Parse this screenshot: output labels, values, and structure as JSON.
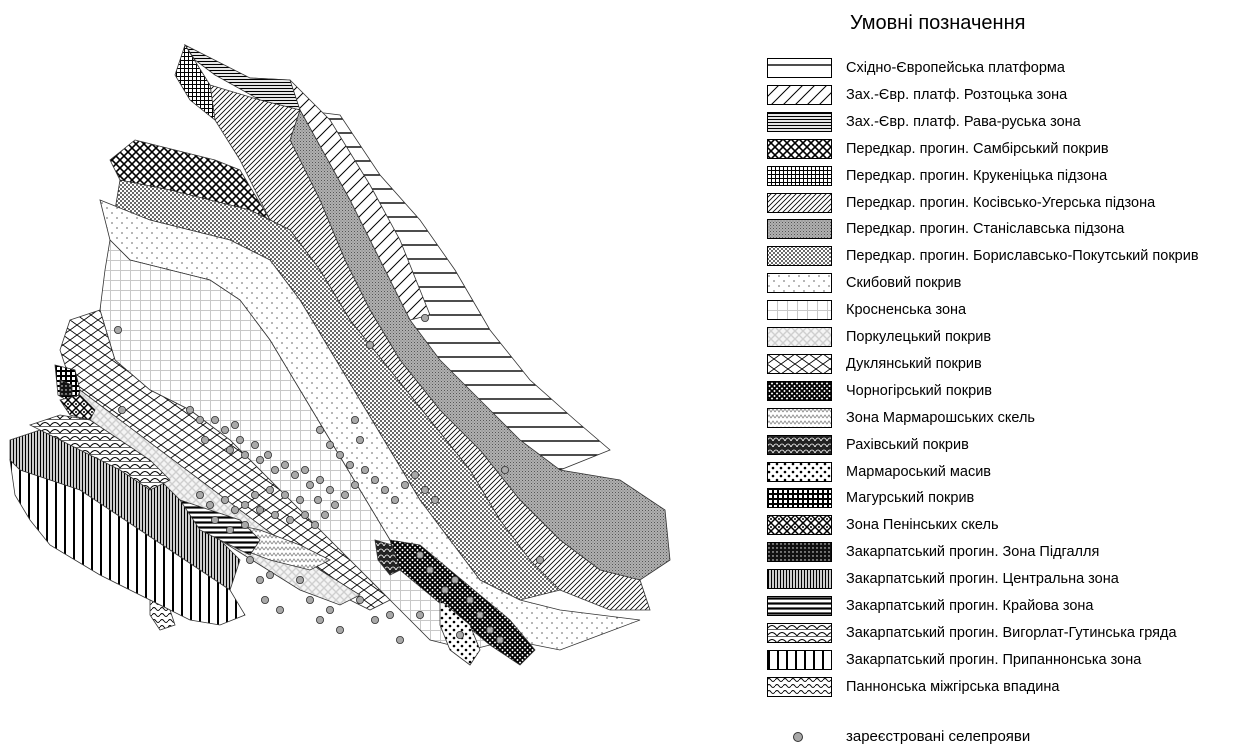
{
  "legend": {
    "title": "Умовні позначення",
    "items": [
      {
        "id": "east-european-platform",
        "label": "Східно-Європейська платформа",
        "pattern": "hlines-sparse"
      },
      {
        "id": "roztochchia-zone",
        "label": "Зах.-Євр. платф. Розтоцька зона",
        "pattern": "diag-sparse"
      },
      {
        "id": "rava-ruska-zone",
        "label": "Зах.-Євр. платф. Рава-руська зона",
        "pattern": "hlines-dense"
      },
      {
        "id": "sambir-nappe",
        "label": "Передкар. прогин. Самбірський покрив",
        "pattern": "crosshatch-diag"
      },
      {
        "id": "krukenychi-subzone",
        "label": "Передкар. прогин. Крукеніцька підзона",
        "pattern": "grid-dense"
      },
      {
        "id": "kosiv-uhersko-subzone",
        "label": "Передкар. прогин. Косівсько-Угерська підзона",
        "pattern": "diag-dense"
      },
      {
        "id": "stanislav-subzone",
        "label": "Передкар. прогин. Станіславська підзона",
        "pattern": "gray-fine"
      },
      {
        "id": "boryslav-pokuttia-nappe",
        "label": "Передкар. прогин. Бориславсько-Покутський покрив",
        "pattern": "dots-dense"
      },
      {
        "id": "skyba-nappe",
        "label": "Скибовий покрив",
        "pattern": "dots-sparse"
      },
      {
        "id": "krosno-zone",
        "label": "Кросненська зона",
        "pattern": "grid-light"
      },
      {
        "id": "porkulets-nappe",
        "label": "Поркулецький покрив",
        "pattern": "lattice-light"
      },
      {
        "id": "dukla-nappe",
        "label": "Дуклянський покрив",
        "pattern": "wave-cross"
      },
      {
        "id": "chornohora-nappe",
        "label": "Чорногірський покрив",
        "pattern": "crosshatch-dark"
      },
      {
        "id": "marmarosh-cliffs-zone",
        "label": "Зона Мармарошських скель",
        "pattern": "zigzag-light"
      },
      {
        "id": "rakhiv-nappe",
        "label": "Рахівський покрив",
        "pattern": "scales-dark"
      },
      {
        "id": "marmarosh-massif",
        "label": "Мармароський масив",
        "pattern": "dots-bold"
      },
      {
        "id": "magura-nappe",
        "label": "Магурський покрив",
        "pattern": "grid-bold"
      },
      {
        "id": "pieniny-cliffs-zone",
        "label": " Зона Пенінських скель",
        "pattern": "weave"
      },
      {
        "id": "pidhallia-zone",
        "label": "Закарпатський прогин. Зона Підгалля",
        "pattern": "dots-black"
      },
      {
        "id": "central-zone",
        "label": "Закарпатський прогин. Центральна зона",
        "pattern": "vlines-dense"
      },
      {
        "id": "marginal-zone",
        "label": "Закарпатський прогин. Крайова зона",
        "pattern": "hlines-bold"
      },
      {
        "id": "vyhorlat-gutyn-ridge",
        "label": "Закарпатський прогин. Вигорлат-Гутинська гряда",
        "pattern": "scallop"
      },
      {
        "id": "pripannonian-zone",
        "label": "Закарпатський прогин. Припаннонська зона",
        "pattern": "vlines-sparse"
      },
      {
        "id": "pannonian-depression",
        "label": "Паннонська міжгірська впадина",
        "pattern": "waves"
      }
    ],
    "points_label": "зареєстровані селепрояви",
    "point_color": "#a8a8a8"
  }
}
